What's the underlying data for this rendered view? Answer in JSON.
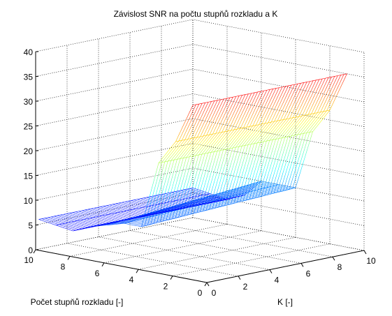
{
  "chart_data": {
    "type": "surface",
    "title": "Závislost SNR na počtu stupňů rozkladu a K",
    "xlabel": "K [-]",
    "ylabel": "Počet stupňů rozkladu [-]",
    "zlabel": "",
    "xlim": [
      0,
      10
    ],
    "ylim": [
      0,
      10
    ],
    "zlim": [
      0,
      40
    ],
    "xticks": [
      "0",
      "2",
      "4",
      "6",
      "8",
      "10"
    ],
    "yticks": [
      "0",
      "2",
      "4",
      "6",
      "8",
      "10"
    ],
    "zticks": [
      "0",
      "5",
      "10",
      "15",
      "20",
      "25",
      "30",
      "35",
      "40"
    ],
    "grid": true,
    "colormap": "jet",
    "render_style": "mesh",
    "k_range": [
      0.2,
      10
    ],
    "stages_range": [
      1,
      10
    ],
    "surface_levels": [
      {
        "stages": 1,
        "snr_at_low_k": 35,
        "snr_at_high_k": 35
      },
      {
        "stages": 2,
        "snr_at_low_k": 27,
        "snr_at_high_k": 27
      },
      {
        "stages": 3,
        "snr_at_low_k": 22,
        "snr_at_high_k": 22
      },
      {
        "stages": 4,
        "snr_at_low_k": 8.5,
        "snr_at_high_k": 10
      },
      {
        "stages": 5,
        "snr_at_low_k": 8.5,
        "snr_at_high_k": 10
      },
      {
        "stages": 6,
        "snr_at_low_k": 7.5,
        "snr_at_high_k": 10
      },
      {
        "stages": 7,
        "snr_at_low_k": 6.5,
        "snr_at_high_k": 6.5
      },
      {
        "stages": 8,
        "snr_at_low_k": 5,
        "snr_at_high_k": 5
      },
      {
        "stages": 9,
        "snr_at_low_k": 5.5,
        "snr_at_high_k": 5.5
      },
      {
        "stages": 10,
        "snr_at_low_k": 6,
        "snr_at_high_k": 6
      }
    ]
  }
}
